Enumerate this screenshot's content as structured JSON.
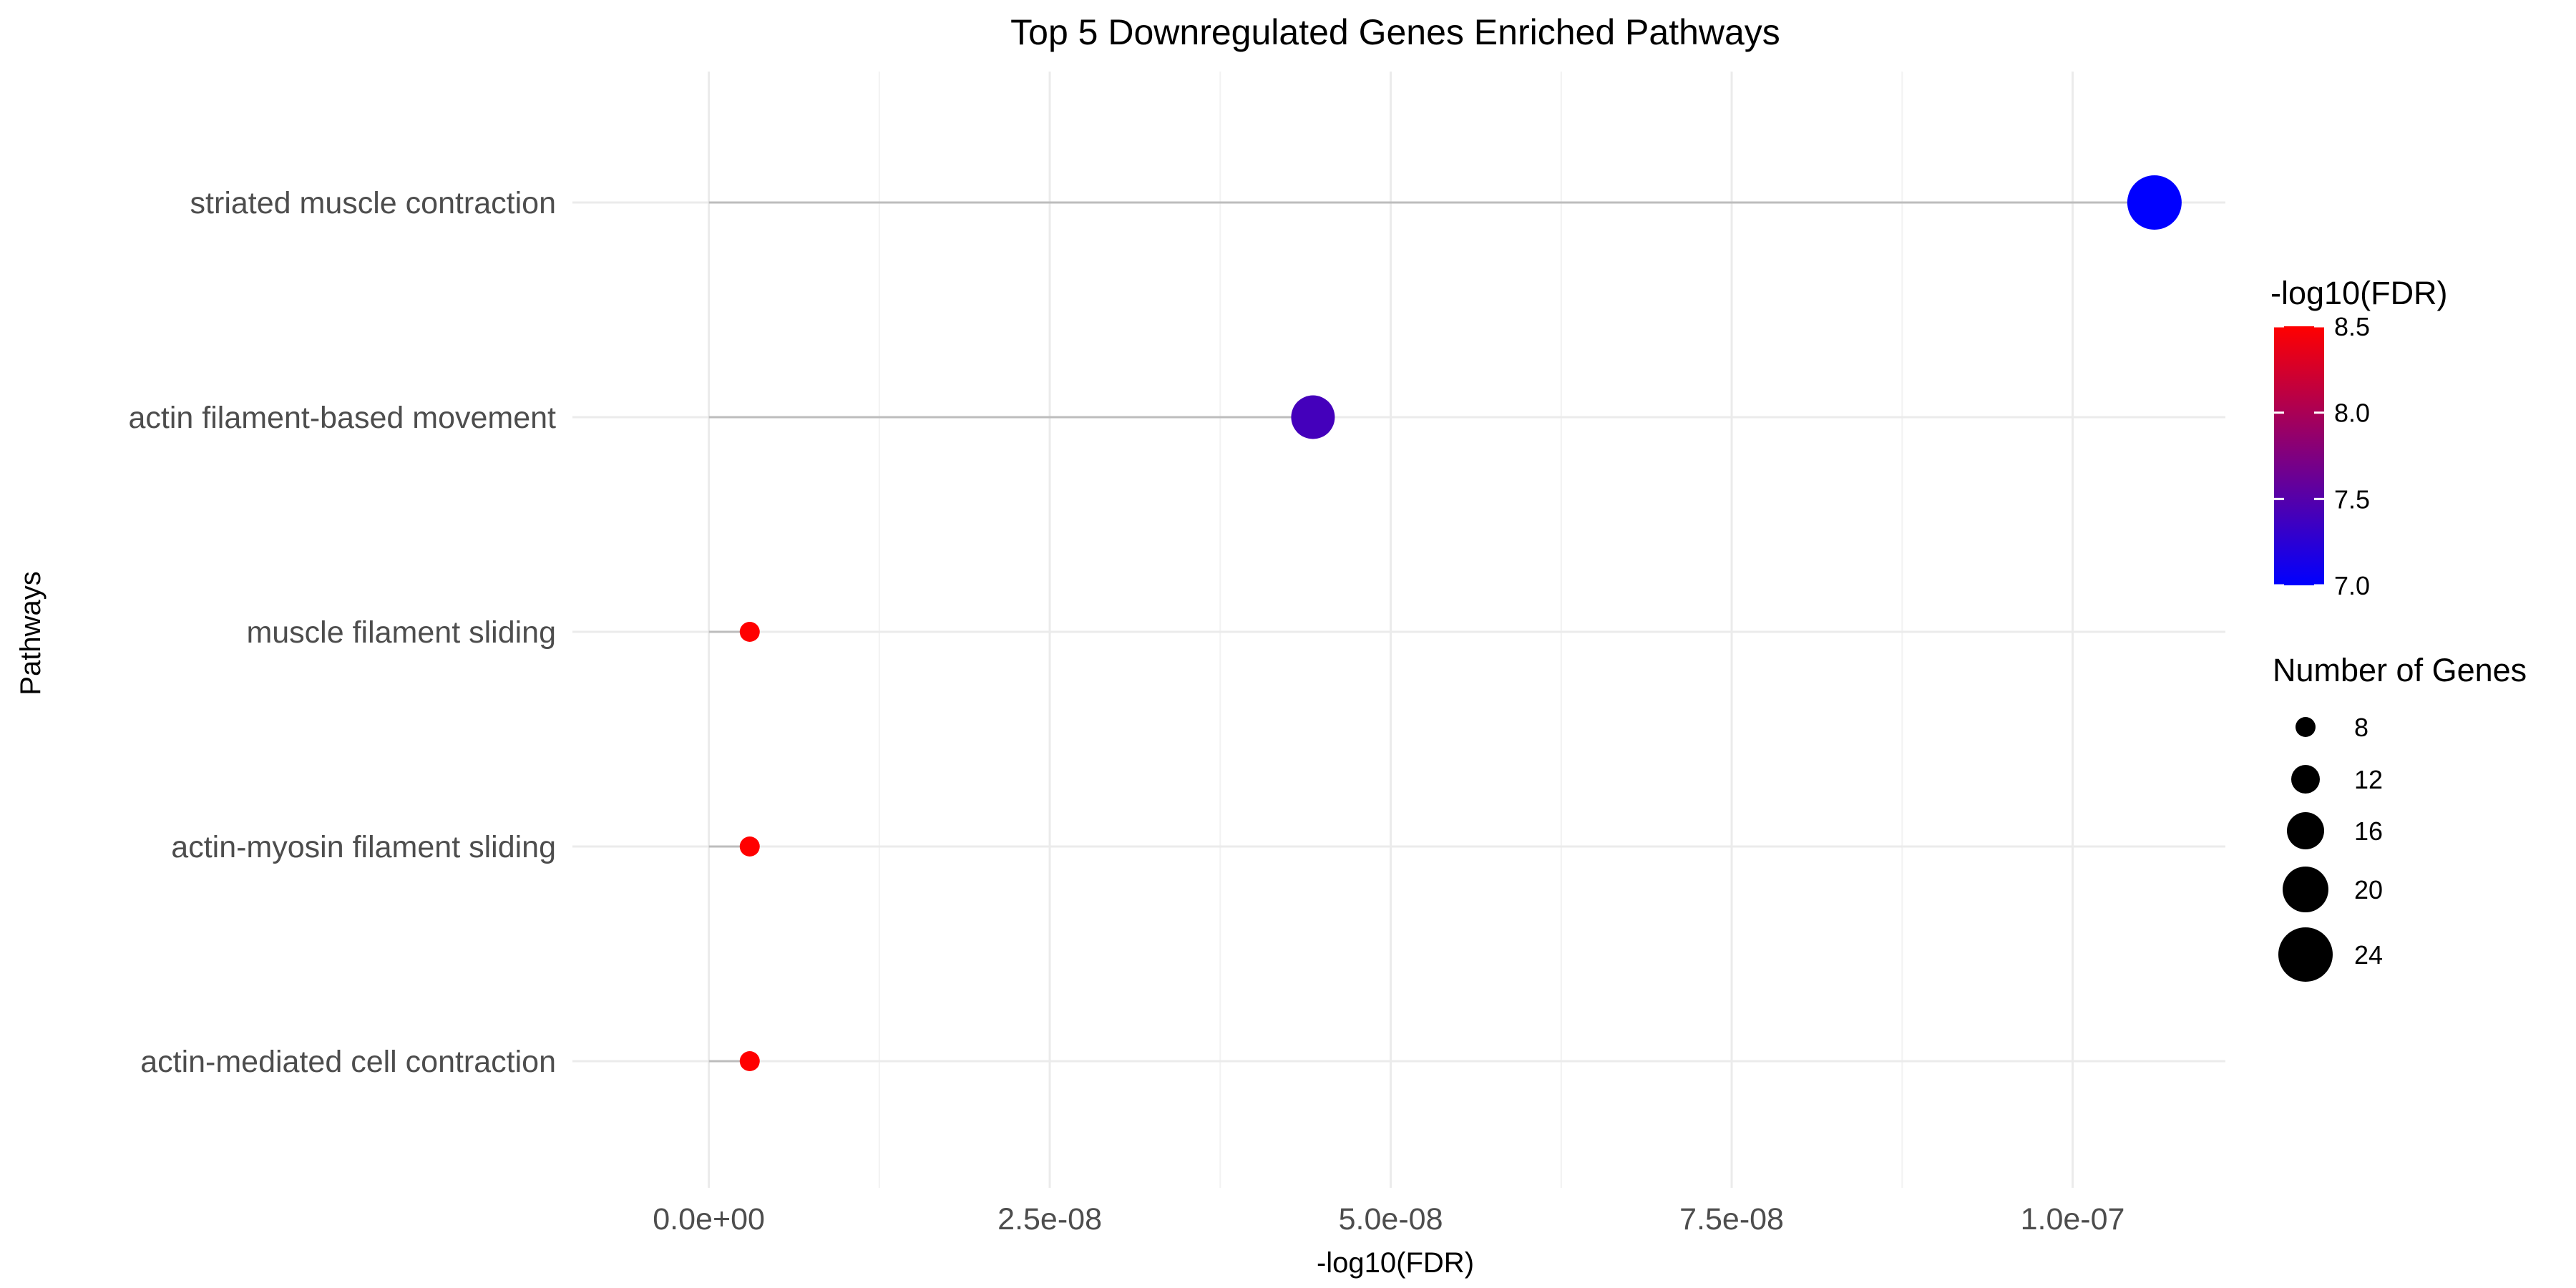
{
  "chart_data": {
    "type": "scatter",
    "subtype": "lollipop",
    "title": "Top 5 Downregulated Genes Enriched Pathways",
    "xlabel": "-log10(FDR)",
    "ylabel": "Pathways",
    "xlim": [
      -1e-08,
      1.112e-07
    ],
    "x_ticks": [
      0,
      2.5e-08,
      5e-08,
      7.5e-08,
      1e-07
    ],
    "x_tick_labels": [
      "0.0e+00",
      "2.5e-08",
      "5.0e-08",
      "7.5e-08",
      "1.0e-07"
    ],
    "grid": true,
    "categories": [
      "striated muscle contraction",
      "actin filament-based movement",
      "muscle filament sliding",
      "actin-myosin filament sliding",
      "actin-mediated cell contraction"
    ],
    "points": [
      {
        "pathway": "striated muscle contraction",
        "x": 1.06e-07,
        "color_value": 7.0,
        "genes": 24
      },
      {
        "pathway": "actin filament-based movement",
        "x": 4.43e-08,
        "color_value": 7.4,
        "genes": 19
      },
      {
        "pathway": "muscle filament sliding",
        "x": 3e-09,
        "color_value": 8.5,
        "genes": 8
      },
      {
        "pathway": "actin-myosin filament sliding",
        "x": 3e-09,
        "color_value": 8.5,
        "genes": 8
      },
      {
        "pathway": "actin-mediated cell contraction",
        "x": 3e-09,
        "color_value": 8.5,
        "genes": 8
      }
    ],
    "color_legend": {
      "title": "-log10(FDR)",
      "range": [
        7.0,
        8.5
      ],
      "ticks": [
        8.5,
        8.0,
        7.5,
        7.0
      ],
      "tick_labels": [
        "8.5",
        "8.0",
        "7.5",
        "7.0"
      ],
      "low_color": "#0000ff",
      "high_color": "#ff0000"
    },
    "size_legend": {
      "title": "Number of Genes",
      "values": [
        8,
        12,
        16,
        20,
        24
      ],
      "labels": [
        "8",
        "12",
        "16",
        "20",
        "24"
      ]
    },
    "legend_position": "right"
  }
}
